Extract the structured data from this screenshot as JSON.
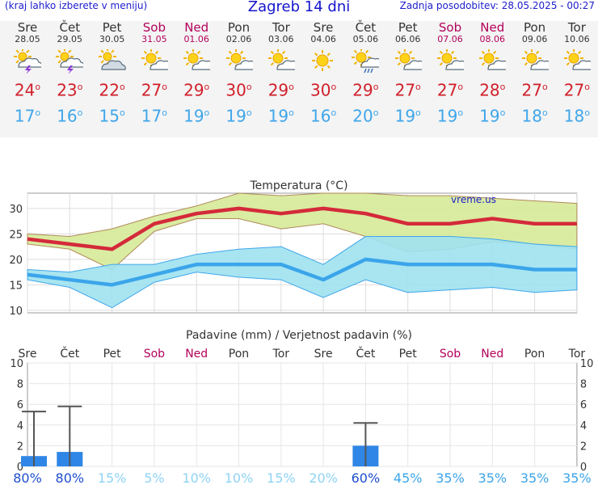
{
  "header": {
    "menu_hint": "(kraj lahko izberete v meniju)",
    "title": "Zagreb 14 dni",
    "updated": "Zadnja posodobitev: 28.05.2025 - 00:27"
  },
  "days": [
    {
      "name": "Sre",
      "date": "28.05",
      "weekend": false,
      "icon": "storm-icon",
      "tmax": "24",
      "tmin": "17"
    },
    {
      "name": "Čet",
      "date": "29.05",
      "weekend": false,
      "icon": "storm-icon",
      "tmax": "23",
      "tmin": "16"
    },
    {
      "name": "Pet",
      "date": "30.05",
      "weekend": false,
      "icon": "cloudy-icon",
      "tmax": "22",
      "tmin": "15"
    },
    {
      "name": "Sob",
      "date": "31.05",
      "weekend": true,
      "icon": "sun-cloud-icon",
      "tmax": "27",
      "tmin": "17"
    },
    {
      "name": "Ned",
      "date": "01.06",
      "weekend": true,
      "icon": "sun-cloud-icon",
      "tmax": "29",
      "tmin": "19"
    },
    {
      "name": "Pon",
      "date": "02.06",
      "weekend": false,
      "icon": "sun-cloud-icon",
      "tmax": "30",
      "tmin": "19"
    },
    {
      "name": "Tor",
      "date": "03.06",
      "weekend": false,
      "icon": "sun-cloud-icon",
      "tmax": "29",
      "tmin": "19"
    },
    {
      "name": "Sre",
      "date": "04.06",
      "weekend": false,
      "icon": "sun-icon",
      "tmax": "30",
      "tmin": "16"
    },
    {
      "name": "Čet",
      "date": "05.06",
      "weekend": false,
      "icon": "sun-rain-icon",
      "tmax": "29",
      "tmin": "20"
    },
    {
      "name": "Pet",
      "date": "06.06",
      "weekend": false,
      "icon": "sun-cloud-icon",
      "tmax": "27",
      "tmin": "19"
    },
    {
      "name": "Sob",
      "date": "07.06",
      "weekend": true,
      "icon": "sun-cloud-icon",
      "tmax": "27",
      "tmin": "19"
    },
    {
      "name": "Ned",
      "date": "08.06",
      "weekend": true,
      "icon": "sun-cloud-icon",
      "tmax": "28",
      "tmin": "19"
    },
    {
      "name": "Pon",
      "date": "09.06",
      "weekend": false,
      "icon": "sun-cloud-icon",
      "tmax": "27",
      "tmin": "18"
    },
    {
      "name": "Tor",
      "date": "10.06",
      "weekend": false,
      "icon": "sun-cloud-icon",
      "tmax": "27",
      "tmin": "18"
    }
  ],
  "colors": {
    "max": "#d42a3a",
    "min": "#3ba5ea",
    "max_band": "#d6ea98",
    "min_band": "#9fe2ef",
    "precip": "#2f86e6",
    "weekend": "#b3005a",
    "link": "#1414cc"
  },
  "chart_data": [
    {
      "type": "line",
      "title": "Temperatura (°C)",
      "watermark": "vreme.us",
      "categories": [
        "28.05",
        "29.05",
        "30.05",
        "31.05",
        "01.06",
        "02.06",
        "03.06",
        "04.06",
        "05.06",
        "06.06",
        "07.06",
        "08.06",
        "09.06",
        "10.06"
      ],
      "ylim": [
        9.5,
        33
      ],
      "yticks": [
        10,
        15,
        20,
        25,
        30
      ],
      "series": [
        {
          "values": [
            24,
            23,
            22,
            27,
            29,
            30,
            29,
            30,
            29,
            27,
            27,
            28,
            27,
            27
          ]
        },
        {
          "values": [
            17,
            16,
            15,
            17,
            19,
            19,
            19,
            16,
            20,
            19,
            19,
            19,
            18,
            18
          ]
        }
      ],
      "max_band": {
        "upper": [
          25,
          24.5,
          26,
          28.5,
          30.5,
          33,
          32.5,
          33,
          33,
          32.5,
          32.5,
          32,
          31.5,
          31
        ],
        "lower": [
          23,
          22,
          18,
          25.5,
          28,
          28,
          26,
          27,
          24.5,
          21.5,
          22,
          23.5,
          23,
          22
        ]
      },
      "min_band": {
        "upper": [
          18,
          17.5,
          19,
          19,
          21,
          22,
          22.5,
          19,
          24.5,
          24.5,
          24.5,
          24,
          23,
          22.5
        ],
        "lower": [
          16,
          14.5,
          10.5,
          15.5,
          17.5,
          16.5,
          16,
          12.5,
          16,
          13.5,
          14,
          14.5,
          13.5,
          14
        ]
      }
    },
    {
      "type": "bar",
      "title": "Padavine (mm) / Verjetnost padavin (%)",
      "categories": [
        "Sre",
        "Čet",
        "Pet",
        "Sob",
        "Ned",
        "Pon",
        "Tor",
        "Sre",
        "Čet",
        "Pet",
        "Sob",
        "Ned",
        "Pon",
        "Tor"
      ],
      "values": [
        1.0,
        1.4,
        0,
        0,
        0,
        0,
        0,
        0,
        2.0,
        0,
        0,
        0,
        0,
        0
      ],
      "error_high": [
        5.3,
        5.8,
        0,
        0,
        0,
        0,
        0,
        0,
        4.2,
        0,
        0,
        0,
        0,
        0
      ],
      "probability": [
        "80%",
        "80%",
        "15%",
        "5%",
        "10%",
        "10%",
        "15%",
        "20%",
        "60%",
        "45%",
        "35%",
        "35%",
        "35%",
        "35%"
      ],
      "ylim": [
        0,
        10
      ],
      "yticks": [
        0,
        2,
        4,
        6,
        8,
        10
      ]
    }
  ]
}
